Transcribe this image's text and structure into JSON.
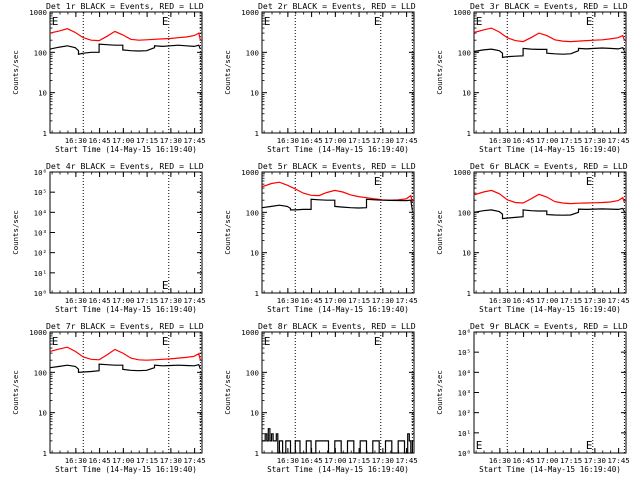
{
  "figure": {
    "x_tick_labels": [
      "16:30",
      "16:45",
      "17:00",
      "17:15",
      "17:30",
      "17:45"
    ],
    "xlabel": "Start Time (14-May-15 16:19:40)",
    "ylabel": "Counts/sec",
    "event_marker": "E",
    "colors": {
      "events": "#000000",
      "lld": "#ff0000",
      "frame": "#000000",
      "background": "#ffffff"
    }
  },
  "chart_data": [
    {
      "type": "line",
      "title": "Det 1r BLACK = Events, RED = LLD",
      "yscale": "log",
      "ylim": [
        1,
        1000
      ],
      "yticks": [
        "1",
        "10",
        "100",
        "1000"
      ],
      "xlim_minutes": [
        -6,
        90
      ],
      "x_ticks_minutes": [
        10.33,
        25.33,
        40.33,
        55.33,
        70.33,
        85.33
      ],
      "x_ticks": [
        "16:30",
        "16:45",
        "17:00",
        "17:15",
        "17:30",
        "17:45"
      ],
      "dotted_lines_minutes": [
        15,
        69,
        89
      ],
      "event_markers_minutes": [
        -5.5,
        64
      ],
      "series": [
        {
          "name": "LLD",
          "color": "#ff0000",
          "x": [
            -6,
            0,
            5,
            10,
            15,
            20,
            25,
            30,
            35,
            40,
            45,
            50,
            55,
            60,
            65,
            70,
            75,
            80,
            85,
            88,
            89
          ],
          "y": [
            300,
            340,
            385,
            310,
            230,
            200,
            195,
            250,
            330,
            270,
            210,
            200,
            205,
            210,
            215,
            220,
            230,
            240,
            260,
            300,
            200
          ]
        },
        {
          "name": "Events",
          "color": "#000000",
          "x": [
            -6,
            0,
            5,
            10,
            12,
            12,
            15,
            20,
            25,
            25,
            30,
            35,
            40,
            40,
            45,
            50,
            55,
            60,
            60,
            65,
            70,
            75,
            80,
            85,
            88,
            89
          ],
          "y": [
            120,
            135,
            145,
            130,
            110,
            90,
            95,
            100,
            100,
            160,
            155,
            150,
            150,
            115,
            110,
            108,
            110,
            130,
            145,
            140,
            145,
            150,
            145,
            140,
            150,
            120
          ]
        }
      ]
    },
    {
      "type": "line",
      "title": "Det 2r BLACK = Events, RED = LLD",
      "yscale": "log",
      "ylim": [
        1,
        1000
      ],
      "yticks": [
        "1",
        "10",
        "100",
        "1000"
      ],
      "xlim_minutes": [
        -6,
        90
      ],
      "x_ticks_minutes": [
        10.33,
        25.33,
        40.33,
        55.33,
        70.33,
        85.33
      ],
      "x_ticks": [
        "16:30",
        "16:45",
        "17:00",
        "17:15",
        "17:30",
        "17:45"
      ],
      "dotted_lines_minutes": [
        15,
        69,
        89
      ],
      "event_markers_minutes": [
        -5.5,
        64
      ],
      "series": []
    },
    {
      "type": "line",
      "title": "Det 3r BLACK = Events, RED = LLD",
      "yscale": "log",
      "ylim": [
        1,
        1000
      ],
      "yticks": [
        "1",
        "10",
        "100",
        "1000"
      ],
      "xlim_minutes": [
        -6,
        90
      ],
      "x_ticks_minutes": [
        10.33,
        25.33,
        40.33,
        55.33,
        70.33,
        85.33
      ],
      "x_ticks": [
        "16:30",
        "16:45",
        "17:00",
        "17:15",
        "17:30",
        "17:45"
      ],
      "dotted_lines_minutes": [
        15,
        69,
        89
      ],
      "event_markers_minutes": [
        -5.5,
        64
      ],
      "series": [
        {
          "name": "LLD",
          "color": "#ff0000",
          "x": [
            -6,
            0,
            5,
            10,
            15,
            20,
            25,
            30,
            35,
            40,
            45,
            50,
            55,
            60,
            65,
            70,
            75,
            80,
            85,
            88,
            89
          ],
          "y": [
            310,
            360,
            400,
            320,
            230,
            195,
            185,
            230,
            300,
            260,
            205,
            190,
            185,
            190,
            195,
            200,
            205,
            215,
            230,
            260,
            200
          ]
        },
        {
          "name": "Events",
          "color": "#000000",
          "x": [
            -6,
            0,
            5,
            10,
            12,
            12,
            15,
            20,
            25,
            25,
            30,
            35,
            40,
            40,
            45,
            50,
            55,
            60,
            60,
            65,
            70,
            75,
            80,
            85,
            88,
            89
          ],
          "y": [
            105,
            115,
            120,
            110,
            95,
            75,
            78,
            80,
            82,
            125,
            120,
            118,
            118,
            95,
            92,
            90,
            92,
            110,
            125,
            122,
            125,
            128,
            125,
            122,
            130,
            110
          ]
        }
      ]
    },
    {
      "type": "line",
      "title": "Det 4r BLACK = Events, RED = LLD",
      "yscale": "log",
      "ylim": [
        1,
        1000000
      ],
      "yticks": [
        "10⁰",
        "10¹",
        "10²",
        "10³",
        "10⁴",
        "10⁵",
        "10⁶"
      ],
      "xlim_minutes": [
        -6,
        90
      ],
      "x_ticks_minutes": [
        10.33,
        25.33,
        40.33,
        55.33,
        70.33,
        85.33
      ],
      "x_ticks": [
        "16:30",
        "16:45",
        "17:00",
        "17:15",
        "17:30",
        "17:45"
      ],
      "dotted_lines_minutes": [
        15,
        69,
        89
      ],
      "event_markers_minutes": [
        64
      ],
      "series": []
    },
    {
      "type": "line",
      "title": "Det 5r BLACK = Events, RED = LLD",
      "yscale": "log",
      "ylim": [
        1,
        1000
      ],
      "yticks": [
        "1",
        "10",
        "100",
        "1000"
      ],
      "xlim_minutes": [
        -6,
        90
      ],
      "x_ticks_minutes": [
        10.33,
        25.33,
        40.33,
        55.33,
        70.33,
        85.33
      ],
      "x_ticks": [
        "16:30",
        "16:45",
        "17:00",
        "17:15",
        "17:30",
        "17:45"
      ],
      "dotted_lines_minutes": [
        15,
        69,
        89
      ],
      "event_markers_minutes": [
        64
      ],
      "series": [
        {
          "name": "LLD",
          "color": "#ff0000",
          "x": [
            -6,
            0,
            5,
            10,
            15,
            20,
            25,
            30,
            35,
            40,
            45,
            50,
            55,
            60,
            65,
            70,
            75,
            80,
            85,
            88,
            89
          ],
          "y": [
            430,
            520,
            560,
            470,
            380,
            300,
            265,
            260,
            310,
            350,
            320,
            270,
            245,
            230,
            215,
            205,
            200,
            205,
            215,
            260,
            180
          ]
        },
        {
          "name": "Events",
          "color": "#000000",
          "x": [
            -6,
            0,
            5,
            10,
            12,
            12,
            15,
            20,
            25,
            25,
            30,
            35,
            40,
            40,
            45,
            50,
            55,
            60,
            60,
            65,
            70,
            75,
            80,
            85,
            88,
            89
          ],
          "y": [
            130,
            140,
            150,
            140,
            125,
            115,
            115,
            118,
            118,
            210,
            205,
            200,
            200,
            140,
            135,
            130,
            128,
            130,
            210,
            205,
            200,
            198,
            196,
            195,
            200,
            110
          ]
        }
      ]
    },
    {
      "type": "line",
      "title": "Det 6r BLACK = Events, RED = LLD",
      "yscale": "log",
      "ylim": [
        1,
        1000
      ],
      "yticks": [
        "1",
        "10",
        "100",
        "1000"
      ],
      "xlim_minutes": [
        -6,
        90
      ],
      "x_ticks_minutes": [
        10.33,
        25.33,
        40.33,
        55.33,
        70.33,
        85.33
      ],
      "x_ticks": [
        "16:30",
        "16:45",
        "17:00",
        "17:15",
        "17:30",
        "17:45"
      ],
      "dotted_lines_minutes": [
        15,
        69,
        89
      ],
      "event_markers_minutes": [
        64
      ],
      "series": [
        {
          "name": "LLD",
          "color": "#ff0000",
          "x": [
            -6,
            0,
            5,
            10,
            15,
            20,
            25,
            30,
            35,
            40,
            45,
            50,
            55,
            60,
            65,
            70,
            75,
            80,
            85,
            88,
            89
          ],
          "y": [
            270,
            320,
            350,
            290,
            205,
            175,
            170,
            215,
            280,
            240,
            185,
            170,
            165,
            168,
            170,
            172,
            175,
            180,
            195,
            230,
            175
          ]
        },
        {
          "name": "Events",
          "color": "#000000",
          "x": [
            -6,
            0,
            5,
            10,
            12,
            12,
            15,
            20,
            25,
            25,
            30,
            35,
            40,
            40,
            45,
            50,
            55,
            60,
            60,
            65,
            70,
            75,
            80,
            85,
            88,
            89
          ],
          "y": [
            100,
            110,
            115,
            105,
            90,
            70,
            72,
            75,
            78,
            115,
            110,
            108,
            108,
            88,
            86,
            85,
            86,
            100,
            120,
            118,
            120,
            122,
            120,
            118,
            125,
            105
          ]
        }
      ]
    },
    {
      "type": "line",
      "title": "Det 7r BLACK = Events, RED = LLD",
      "yscale": "log",
      "ylim": [
        1,
        1000
      ],
      "yticks": [
        "1",
        "10",
        "100",
        "1000"
      ],
      "xlim_minutes": [
        -6,
        90
      ],
      "x_ticks_minutes": [
        10.33,
        25.33,
        40.33,
        55.33,
        70.33,
        85.33
      ],
      "x_ticks": [
        "16:30",
        "16:45",
        "17:00",
        "17:15",
        "17:30",
        "17:45"
      ],
      "dotted_lines_minutes": [
        15,
        69,
        89
      ],
      "event_markers_minutes": [
        -5.5,
        64
      ],
      "series": [
        {
          "name": "LLD",
          "color": "#ff0000",
          "x": [
            -6,
            0,
            5,
            10,
            15,
            20,
            25,
            30,
            35,
            40,
            45,
            50,
            55,
            60,
            65,
            70,
            75,
            80,
            85,
            88,
            89
          ],
          "y": [
            330,
            380,
            420,
            330,
            240,
            210,
            205,
            270,
            370,
            300,
            225,
            205,
            200,
            205,
            210,
            215,
            225,
            235,
            250,
            290,
            200
          ]
        },
        {
          "name": "Events",
          "color": "#000000",
          "x": [
            -6,
            0,
            5,
            10,
            12,
            12,
            15,
            20,
            25,
            25,
            30,
            35,
            40,
            40,
            45,
            50,
            55,
            60,
            60,
            65,
            70,
            75,
            80,
            85,
            88,
            89
          ],
          "y": [
            130,
            140,
            150,
            140,
            120,
            100,
            102,
            105,
            110,
            160,
            155,
            150,
            150,
            118,
            112,
            110,
            112,
            130,
            150,
            145,
            148,
            150,
            148,
            145,
            155,
            120
          ]
        }
      ]
    },
    {
      "type": "line",
      "title": "Det 8r BLACK = Events, RED = LLD",
      "yscale": "log",
      "ylim": [
        1,
        1000
      ],
      "yticks": [
        "1",
        "10",
        "100",
        "1000"
      ],
      "xlim_minutes": [
        -6,
        90
      ],
      "x_ticks_minutes": [
        10.33,
        25.33,
        40.33,
        55.33,
        70.33,
        85.33
      ],
      "x_ticks": [
        "16:30",
        "16:45",
        "17:00",
        "17:15",
        "17:30",
        "17:45"
      ],
      "dotted_lines_minutes": [
        15,
        69,
        89
      ],
      "event_markers_minutes": [
        -5.5,
        64
      ],
      "series": [
        {
          "name": "Events",
          "color": "#000000",
          "style": "steps",
          "x": [
            -6,
            -4,
            -3,
            -2,
            -1,
            0,
            1,
            2,
            3,
            4,
            5,
            7,
            9,
            12,
            15,
            18,
            22,
            25,
            28,
            32,
            36,
            40,
            44,
            48,
            52,
            56,
            60,
            64,
            68,
            72,
            76,
            80,
            84,
            86,
            87,
            88,
            89
          ],
          "y": [
            2,
            3,
            2,
            4,
            2,
            3,
            2,
            2,
            3,
            1,
            2,
            1,
            2,
            1,
            2,
            1,
            2,
            1,
            2,
            2,
            1,
            2,
            1,
            2,
            1,
            2,
            1,
            2,
            1,
            2,
            1,
            2,
            1,
            3,
            2,
            1,
            2
          ]
        }
      ]
    },
    {
      "type": "line",
      "title": "Det 9r BLACK = Events, RED = LLD",
      "yscale": "log",
      "ylim": [
        1,
        1000000
      ],
      "yticks": [
        "10⁰",
        "10¹",
        "10²",
        "10³",
        "10⁴",
        "10⁵",
        "10⁶"
      ],
      "xlim_minutes": [
        -6,
        90
      ],
      "x_ticks_minutes": [
        10.33,
        25.33,
        40.33,
        55.33,
        70.33,
        85.33
      ],
      "x_ticks": [
        "16:30",
        "16:45",
        "17:00",
        "17:15",
        "17:30",
        "17:45"
      ],
      "dotted_lines_minutes": [
        15,
        69,
        89
      ],
      "event_markers_minutes": [
        -5.5,
        64
      ],
      "series": []
    }
  ]
}
